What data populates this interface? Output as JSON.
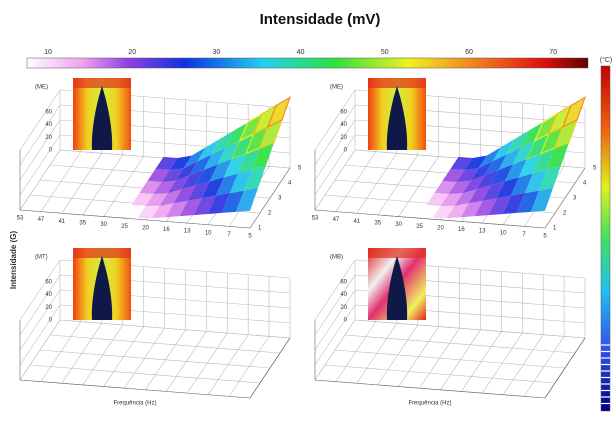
{
  "title": "Intensidade (mV)",
  "colorbar": {
    "ticks": [
      "10",
      "20",
      "30",
      "40",
      "50",
      "60",
      "70"
    ]
  },
  "temp_scale": {
    "label": "(°C)"
  },
  "y_label": "Intensidade (G)",
  "panels": [
    {
      "label": "(ME)",
      "z_ticks": [
        "60",
        "40",
        "20",
        "0"
      ],
      "x_ticks": [
        "53",
        "47",
        "41",
        "35",
        "30",
        "25",
        "20",
        "16",
        "13",
        "10",
        "7",
        "5"
      ],
      "y_ticks": [
        "1",
        "2",
        "3",
        "4",
        "5"
      ]
    },
    {
      "label": "(ME)",
      "z_ticks": [
        "60",
        "40",
        "20",
        "0"
      ],
      "x_ticks": [
        "53",
        "47",
        "41",
        "35",
        "30",
        "25",
        "20",
        "16",
        "13",
        "10",
        "7",
        "5"
      ],
      "y_ticks": [
        "1",
        "2",
        "3",
        "4",
        "5"
      ]
    },
    {
      "label": "(MT)",
      "z_ticks": [
        "60",
        "40",
        "20",
        "0"
      ],
      "x_label": "Frequência (Hz)"
    },
    {
      "label": "(MB)",
      "z_ticks": [
        "60",
        "40",
        "20",
        "0"
      ],
      "x_label": "Frequência (Hz)"
    }
  ]
}
